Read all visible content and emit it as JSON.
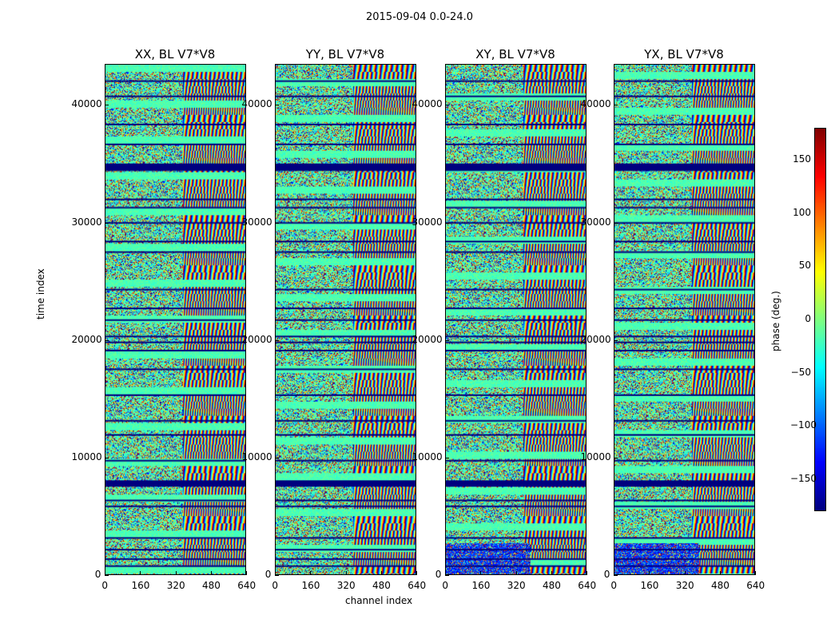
{
  "chart_data": {
    "type": "heatmap",
    "suptitle": "2015-09-04 0.0-24.0",
    "panels": [
      {
        "title": "XX, BL V7*V8"
      },
      {
        "title": "YY, BL V7*V8"
      },
      {
        "title": "XY, BL V7*V8"
      },
      {
        "title": "YX, BL V7*V8"
      }
    ],
    "xlabel": "channel index",
    "ylabel": "time index",
    "xlim": [
      0,
      640
    ],
    "ylim": [
      0,
      43500
    ],
    "xticks": [
      0,
      160,
      320,
      480,
      640
    ],
    "yticks": [
      0,
      10000,
      20000,
      30000,
      40000
    ],
    "colorbar": {
      "label": "phase (deg.)",
      "range": [
        -180,
        180
      ],
      "ticks": [
        -150,
        -100,
        -50,
        0,
        50,
        100,
        150
      ],
      "colormap": "jet"
    },
    "gap_rows": [
      700,
      1300,
      2100,
      3100,
      5800,
      6300,
      7600,
      7900,
      9700,
      11900,
      13100,
      15300,
      17500,
      19100,
      19800,
      20300,
      21700,
      22700,
      24300,
      27500,
      28400,
      30000,
      31300,
      32000,
      34500,
      35000,
      36700,
      38400,
      40800,
      42100
    ]
  }
}
